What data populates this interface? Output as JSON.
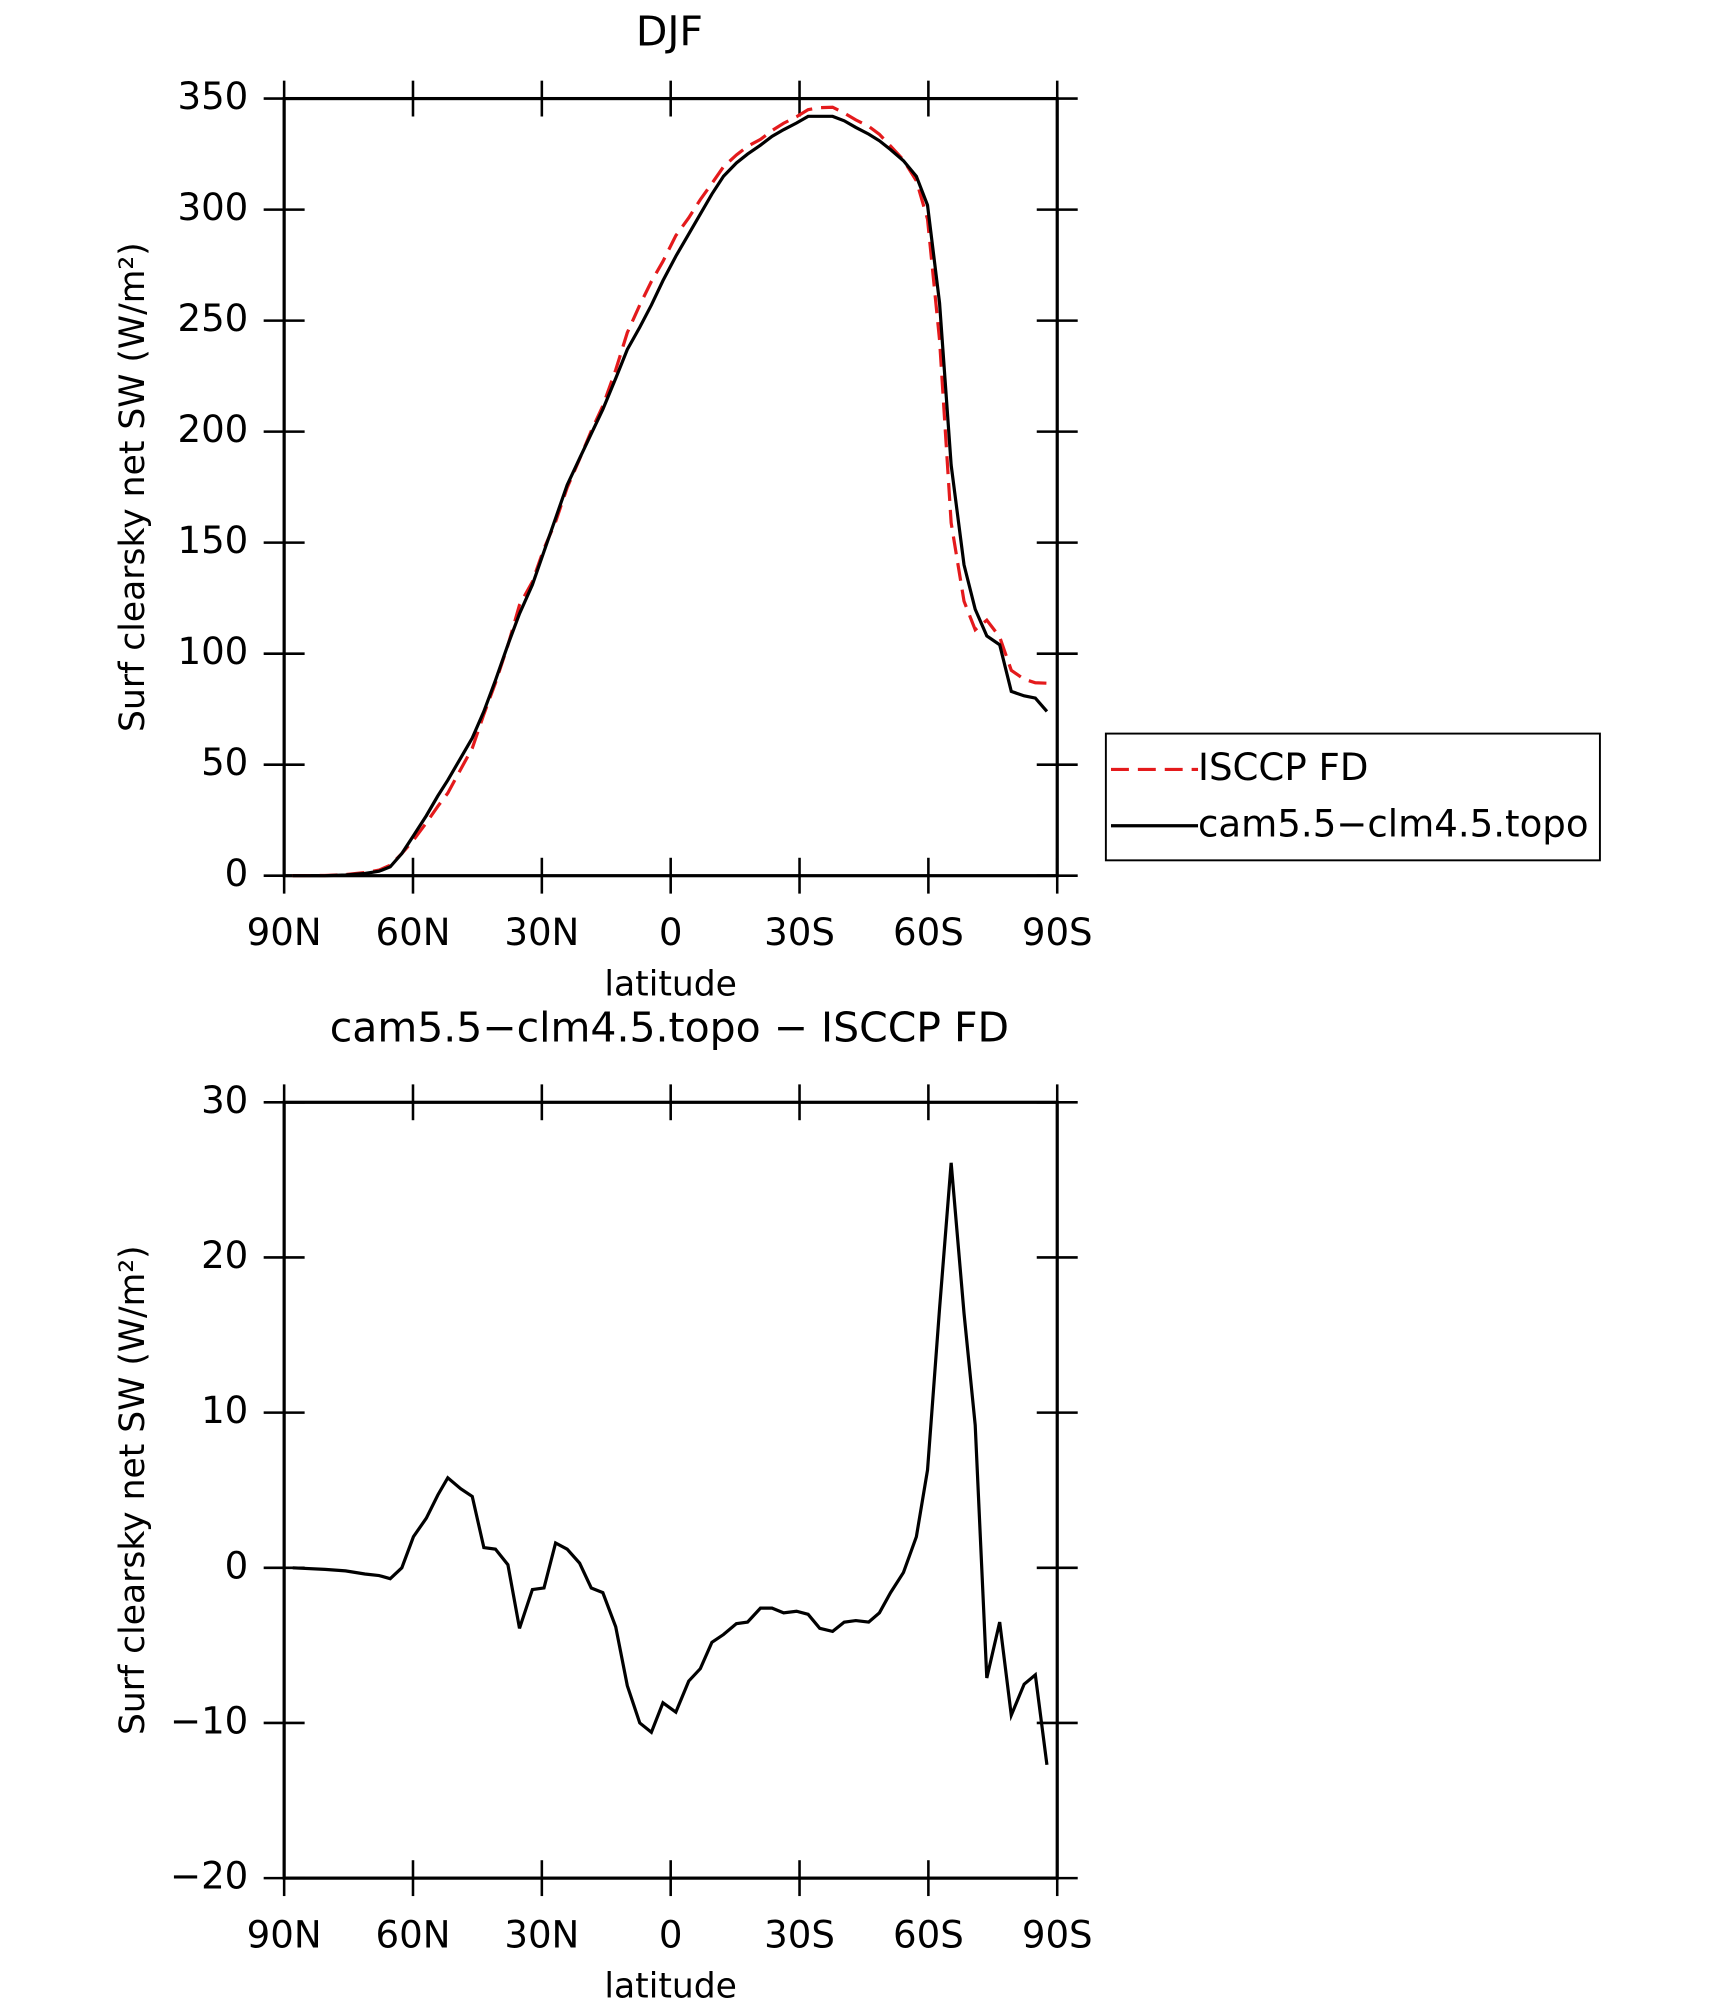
{
  "chart_data": [
    {
      "type": "line",
      "title": "DJF",
      "xlabel": "latitude",
      "ylabel": "Surf clearsky net SW (W/m²)",
      "x": [
        88,
        80.5,
        75.7,
        71.2,
        67.9,
        65.3,
        62.6,
        59.9,
        56.9,
        54.2,
        51.9,
        48.9,
        46.2,
        43.5,
        40.8,
        37.9,
        35.2,
        32.2,
        29.5,
        26.8,
        24.1,
        21.2,
        18.5,
        15.8,
        12.8,
        10.1,
        7.2,
        4.5,
        1.8,
        -1.2,
        -4.2,
        -6.9,
        -9.6,
        -12.3,
        -15.3,
        -17.9,
        -20.9,
        -23.6,
        -26.3,
        -29.3,
        -32,
        -34.7,
        -37.7,
        -40.4,
        -43.1,
        -46.1,
        -48.6,
        -51.2,
        -54.2,
        -57.2,
        -59.8,
        -62.6,
        -65.3,
        -68.3,
        -70.9,
        -73.6,
        -76.6,
        -79.3,
        -82.3,
        -84.9,
        -87.6
      ],
      "series": [
        {
          "name": "ISCCP FD",
          "color": "#e41a1c",
          "dash": true,
          "values": [
            0,
            0.1,
            0.5,
            1.4,
            2.5,
            4.7,
            10,
            16,
            23.8,
            31.3,
            37.2,
            47.9,
            57.4,
            72.7,
            86.8,
            103.8,
            121.9,
            132.4,
            147.3,
            159.4,
            174.8,
            187.7,
            200.3,
            211.6,
            227.8,
            244.6,
            257,
            267.6,
            276.7,
            288.3,
            296.3,
            304.5,
            311.8,
            319.3,
            324.6,
            328.5,
            331.6,
            335.6,
            338.9,
            341.8,
            345,
            345.9,
            346.1,
            343.5,
            340.4,
            337.5,
            333.9,
            328.6,
            322.3,
            313,
            295.7,
            241.3,
            158.9,
            123.6,
            110.8,
            115.1,
            107.5,
            92.5,
            88.5,
            86.9,
            86.7
          ]
        },
        {
          "name": "cam5.5−clm4.5.topo",
          "color": "#000000",
          "dash": false,
          "values": [
            0,
            0,
            0.3,
            1,
            2,
            4,
            10,
            18,
            27,
            36,
            43,
            53,
            62,
            74,
            88,
            104,
            118,
            131,
            146,
            161,
            176,
            188,
            199,
            210,
            224,
            237,
            247,
            257,
            268,
            279,
            289,
            298,
            307,
            315,
            321,
            325,
            329,
            333,
            336,
            339,
            342,
            342,
            342,
            340,
            337,
            334,
            331,
            327,
            322,
            315,
            302,
            258,
            185,
            140,
            120,
            108,
            104,
            83,
            81,
            80,
            74
          ]
        }
      ],
      "xlim": [
        90,
        -90
      ],
      "xticks": [
        {
          "value": 90,
          "label": "90N"
        },
        {
          "value": 60,
          "label": "60N"
        },
        {
          "value": 30,
          "label": "30N"
        },
        0,
        {
          "value": -30,
          "label": "30S"
        },
        {
          "value": -60,
          "label": "60S"
        },
        {
          "value": -90,
          "label": "90S"
        }
      ],
      "ylim": [
        0,
        350
      ],
      "yticks": [
        0,
        50,
        100,
        150,
        200,
        250,
        300,
        350
      ],
      "legend": "outside-right"
    },
    {
      "type": "line",
      "title": "cam5.5−clm4.5.topo − ISCCP FD",
      "xlabel": "latitude",
      "ylabel": "Surf clearsky net SW (W/m²)",
      "x": [
        88,
        80.5,
        75.7,
        71.2,
        67.9,
        65.3,
        62.6,
        59.9,
        56.9,
        54.2,
        51.9,
        48.9,
        46.2,
        43.5,
        40.8,
        37.9,
        35.2,
        32.2,
        29.5,
        26.8,
        24.1,
        21.2,
        18.5,
        15.8,
        12.8,
        10.1,
        7.2,
        4.5,
        1.8,
        -1.2,
        -4.2,
        -6.9,
        -9.6,
        -12.3,
        -15.3,
        -17.9,
        -20.9,
        -23.6,
        -26.3,
        -29.3,
        -32,
        -34.7,
        -37.7,
        -40.4,
        -43.1,
        -46.1,
        -48.6,
        -51.2,
        -54.2,
        -57.2,
        -59.8,
        -62.6,
        -65.3,
        -68.3,
        -70.9,
        -73.6,
        -76.6,
        -79.3,
        -82.3,
        -84.9,
        -87.6
      ],
      "series": [
        {
          "color": "#000000",
          "dash": false,
          "values": [
            0,
            -0.1,
            -0.2,
            -0.4,
            -0.5,
            -0.7,
            0,
            2,
            3.2,
            4.7,
            5.8,
            5.1,
            4.6,
            1.3,
            1.2,
            0.2,
            -3.9,
            -1.4,
            -1.3,
            1.6,
            1.2,
            0.3,
            -1.3,
            -1.6,
            -3.8,
            -7.6,
            -10,
            -10.6,
            -8.7,
            -9.3,
            -7.3,
            -6.5,
            -4.8,
            -4.3,
            -3.6,
            -3.5,
            -2.6,
            -2.6,
            -2.9,
            -2.8,
            -3,
            -3.9,
            -4.1,
            -3.5,
            -3.4,
            -3.5,
            -2.9,
            -1.6,
            -0.3,
            2,
            6.3,
            16.7,
            26.1,
            16.4,
            9.2,
            -7.1,
            -3.5,
            -9.5,
            -7.5,
            -6.9,
            -12.7
          ]
        }
      ],
      "xlim": [
        90,
        -90
      ],
      "xticks": [
        {
          "value": 90,
          "label": "90N"
        },
        {
          "value": 60,
          "label": "60N"
        },
        {
          "value": 30,
          "label": "30N"
        },
        0,
        {
          "value": -30,
          "label": "30S"
        },
        {
          "value": -60,
          "label": "60S"
        },
        {
          "value": -90,
          "label": "90S"
        }
      ],
      "ylim": [
        -20,
        30
      ],
      "yticks": [
        {
          "value": -20,
          "label": "−20"
        },
        {
          "value": -10,
          "label": "−10"
        },
        0,
        10,
        20,
        30
      ]
    }
  ]
}
